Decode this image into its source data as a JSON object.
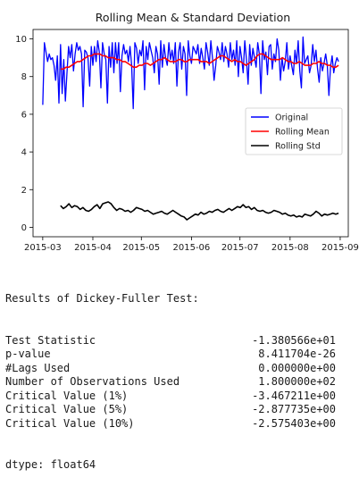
{
  "chart_data": {
    "type": "line",
    "title": "Rolling Mean & Standard Deviation",
    "xlabel": "",
    "ylabel": "",
    "x_start": "2015-03-01",
    "x_end": "2015-08-31",
    "xlim": [
      "2015-02-23",
      "2015-09-06"
    ],
    "ylim": [
      -0.5,
      10.5
    ],
    "x_ticks": [
      "2015-03",
      "2015-04",
      "2015-05",
      "2015-06",
      "2015-07",
      "2015-08",
      "2015-09"
    ],
    "y_ticks": [
      0,
      2,
      4,
      6,
      8,
      10
    ],
    "grid": false,
    "legend_position": "right",
    "series": [
      {
        "name": "Original",
        "color": "#0000ff",
        "values": [
          6.5,
          9.8,
          9.3,
          8.8,
          9.2,
          8.9,
          9.0,
          8.6,
          7.8,
          9.1,
          6.6,
          9.7,
          7.1,
          8.9,
          6.7,
          8.2,
          9.6,
          9.0,
          9.7,
          8.3,
          9.2,
          9.8,
          9.4,
          9.6,
          9.2,
          6.4,
          9.4,
          9.3,
          9.0,
          7.5,
          9.6,
          8.6,
          9.6,
          8.8,
          9.9,
          9.3,
          7.4,
          9.8,
          9.2,
          8.9,
          6.6,
          9.6,
          8.5,
          9.8,
          8.2,
          9.8,
          8.7,
          9.8,
          7.2,
          9.1,
          9.7,
          9.2,
          9.4,
          8.8,
          9.6,
          8.6,
          6.3,
          9.8,
          9.5,
          8.7,
          9.4,
          9.1,
          9.9,
          7.3,
          9.6,
          8.9,
          9.8,
          9.4,
          9.0,
          8.2,
          9.6,
          9.2,
          7.6,
          9.9,
          8.5,
          9.7,
          9.0,
          8.6,
          9.8,
          8.9,
          9.4,
          8.7,
          9.8,
          7.5,
          9.3,
          9.8,
          8.4,
          9.6,
          9.2,
          7.0,
          9.9,
          9.1,
          8.7,
          9.6,
          9.4,
          9.2,
          9.7,
          8.7,
          9.5,
          9.0,
          8.4,
          9.8,
          9.3,
          8.6,
          9.9,
          9.0,
          7.8,
          8.6,
          9.6,
          9.3,
          8.9,
          9.8,
          8.8,
          9.6,
          9.2,
          8.5,
          9.8,
          8.9,
          9.4,
          8.6,
          9.9,
          8.0,
          9.6,
          9.0,
          8.2,
          9.9,
          8.9,
          7.6,
          9.7,
          8.6,
          9.5,
          9.0,
          8.5,
          9.8,
          9.2,
          7.1,
          9.9,
          8.9,
          9.3,
          8.1,
          9.6,
          9.7,
          8.4,
          9.2,
          8.8,
          10.0,
          9.4,
          7.8,
          9.0,
          8.3,
          8.8,
          9.8,
          8.4,
          9.1,
          8.6,
          8.1,
          9.4,
          8.7,
          9.9,
          8.3,
          7.4,
          10.1,
          8.7,
          8.9,
          9.1,
          8.2,
          8.6,
          9.7,
          8.8,
          9.4,
          8.4,
          7.7,
          9.0,
          8.3,
          8.7,
          9.2,
          8.6,
          7.0,
          8.5,
          9.1,
          8.2,
          8.7,
          9.0,
          8.8
        ]
      },
      {
        "name": "Rolling Mean",
        "color": "#ff0000",
        "values": [
          8.4,
          8.4,
          8.5,
          8.5,
          8.6,
          8.7,
          8.8,
          8.8,
          8.9,
          9.0,
          9.1,
          9.1,
          9.2,
          9.2,
          9.2,
          9.1,
          9.1,
          9.0,
          9.0,
          9.0,
          8.9,
          8.9,
          8.8,
          8.8,
          8.7,
          8.6,
          8.5,
          8.5,
          8.6,
          8.6,
          8.7,
          8.7,
          8.6,
          8.7,
          8.8,
          8.9,
          8.9,
          9.0,
          8.9,
          8.8,
          8.8,
          8.8,
          8.9,
          8.9,
          8.8,
          8.8,
          8.9,
          8.9,
          8.9,
          8.9,
          8.8,
          8.8,
          8.8,
          8.7,
          8.8,
          8.9,
          9.0,
          9.1,
          9.1,
          9.0,
          8.9,
          8.8,
          8.9,
          8.8,
          8.8,
          8.7,
          8.6,
          8.7,
          8.8,
          8.9,
          9.1,
          9.2,
          9.2,
          9.1,
          9.0,
          8.9,
          8.9,
          8.9,
          8.9,
          9.0,
          8.9,
          8.8,
          8.8,
          8.7,
          8.7,
          8.8,
          8.7,
          8.6,
          8.6,
          8.6,
          8.7,
          8.7,
          8.8,
          8.7,
          8.7,
          8.6,
          8.6,
          8.5,
          8.5,
          8.6
        ]
      },
      {
        "name": "Rolling Std",
        "color": "#000000",
        "values": [
          1.15,
          1.0,
          1.1,
          1.25,
          1.05,
          1.15,
          1.1,
          0.95,
          1.05,
          0.9,
          0.85,
          0.95,
          1.1,
          1.2,
          1.0,
          1.25,
          1.3,
          1.35,
          1.25,
          1.05,
          0.9,
          1.0,
          0.95,
          0.85,
          0.9,
          0.8,
          0.9,
          1.05,
          1.0,
          0.95,
          0.85,
          0.9,
          0.8,
          0.7,
          0.75,
          0.8,
          0.85,
          0.75,
          0.7,
          0.8,
          0.9,
          0.8,
          0.7,
          0.6,
          0.55,
          0.4,
          0.5,
          0.6,
          0.7,
          0.65,
          0.8,
          0.7,
          0.75,
          0.85,
          0.8,
          0.9,
          0.95,
          0.85,
          0.8,
          0.9,
          1.0,
          0.9,
          1.0,
          1.1,
          1.05,
          1.2,
          1.05,
          1.1,
          0.95,
          1.05,
          0.9,
          0.85,
          0.9,
          0.8,
          0.75,
          0.8,
          0.9,
          0.85,
          0.8,
          0.7,
          0.75,
          0.65,
          0.6,
          0.65,
          0.55,
          0.6,
          0.55,
          0.7,
          0.65,
          0.6,
          0.7,
          0.85,
          0.75,
          0.6,
          0.7,
          0.65,
          0.7,
          0.75,
          0.7,
          0.75
        ]
      }
    ]
  },
  "results": {
    "header": "Results of Dickey-Fuller Test:",
    "rows": [
      {
        "label": "Test Statistic",
        "value": "-1.380566e+01"
      },
      {
        "label": "p-value",
        "value": "8.411704e-26"
      },
      {
        "label": "#Lags Used",
        "value": "0.000000e+00"
      },
      {
        "label": "Number of Observations Used",
        "value": "1.800000e+02"
      },
      {
        "label": "Critical Value (1%)",
        "value": "-3.467211e+00"
      },
      {
        "label": "Critical Value (5%)",
        "value": "-2.877735e+00"
      },
      {
        "label": "Critical Value (10%)",
        "value": "-2.575403e+00"
      }
    ],
    "dtype": "dtype: float64"
  }
}
